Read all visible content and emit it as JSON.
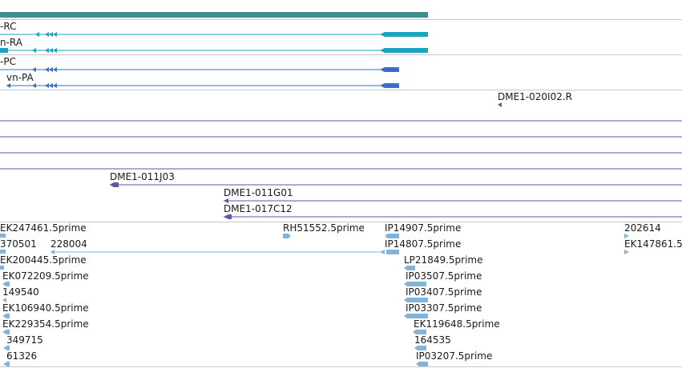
{
  "colors": {
    "gene_span": "#3b8f8f",
    "transcript_teal": "#1aa3bf",
    "transcript_blue": "#3a6fc9",
    "clone_purple": "#6b4fa8",
    "est_lightblue": "#7fb4dc",
    "track_divider": "#c8c8c8",
    "text": "#1a1a1a"
  },
  "tracks": {
    "gene_span": {
      "label": ""
    },
    "transcripts_rna": [
      {
        "label": "-RC",
        "color": "teal"
      },
      {
        "label": "n-RA",
        "color": "teal"
      }
    ],
    "transcripts_protein": [
      {
        "label": "-PC",
        "color": "blue"
      },
      {
        "label": "vn-PA",
        "color": "blue"
      }
    ],
    "clone_end": {
      "label": "DME1-020I02.R"
    },
    "cdna_clones": [
      {
        "label": "DME1-011J03"
      },
      {
        "label": "DME1-011G01"
      },
      {
        "label": "DME1-017C12"
      }
    ],
    "est_labels": [
      "EK247461.5prime",
      "370501",
      "228004",
      "EK200445.5prime",
      "EK072209.5prime",
      "149540",
      "EK106940.5prime",
      "EK229354.5prime",
      "349715",
      "61326",
      "RH51552.5prime",
      "IP14907.5prime",
      "IP14807.5prime",
      "LP21849.5prime",
      "IP03507.5prime",
      "IP03407.5prime",
      "IP03307.5prime",
      "EK119648.5prime",
      "164535",
      "IP03207.5prime",
      "202614",
      "EK147861.5"
    ]
  }
}
